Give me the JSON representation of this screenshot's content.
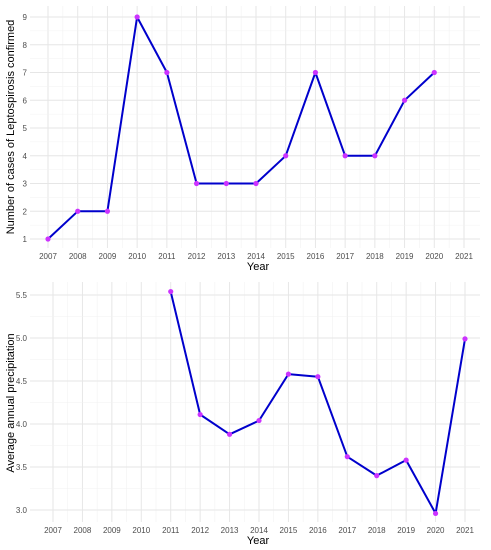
{
  "chart_data": [
    {
      "type": "line",
      "xlabel": "Year",
      "ylabel": "Number of cases of Leptospirosis confirmed",
      "x_ticks": [
        "2007",
        "2008",
        "2009",
        "2010",
        "2011",
        "2012",
        "2013",
        "2014",
        "2015",
        "2016",
        "2017",
        "2018",
        "2019",
        "2020",
        "2021"
      ],
      "y_ticks": [
        "1",
        "2",
        "3",
        "4",
        "5",
        "6",
        "7",
        "8",
        "9"
      ],
      "xlim": [
        2007,
        2021
      ],
      "ylim": [
        1,
        9
      ],
      "grid": true,
      "series": [
        {
          "x": [
            2007,
            2008,
            2009,
            2010,
            2011,
            2012,
            2013,
            2014,
            2015,
            2016,
            2017,
            2018,
            2019,
            2020
          ],
          "y": [
            1,
            2,
            2,
            9,
            7,
            3,
            3,
            3,
            4,
            7,
            4,
            4,
            6,
            7
          ],
          "line_color": "#0000cc",
          "point_color": "#cc33ff"
        }
      ]
    },
    {
      "type": "line",
      "xlabel": "Year",
      "ylabel": "Average annual precipitation",
      "x_ticks": [
        "2007",
        "2008",
        "2009",
        "2010",
        "2011",
        "2012",
        "2013",
        "2014",
        "2015",
        "2016",
        "2017",
        "2018",
        "2019",
        "2020",
        "2021"
      ],
      "y_ticks": [
        "3.0",
        "3.5",
        "4.0",
        "4.5",
        "5.0",
        "5.5"
      ],
      "xlim": [
        2007,
        2021
      ],
      "ylim": [
        3.0,
        5.5
      ],
      "grid": true,
      "series": [
        {
          "x": [
            2011,
            2012,
            2013,
            2014,
            2015,
            2016,
            2017,
            2018,
            2019,
            2020,
            2021
          ],
          "y": [
            5.54,
            4.11,
            3.88,
            4.04,
            4.58,
            4.55,
            3.62,
            3.4,
            3.58,
            2.96,
            4.99
          ],
          "line_color": "#0000cc",
          "point_color": "#cc33ff"
        }
      ]
    }
  ]
}
